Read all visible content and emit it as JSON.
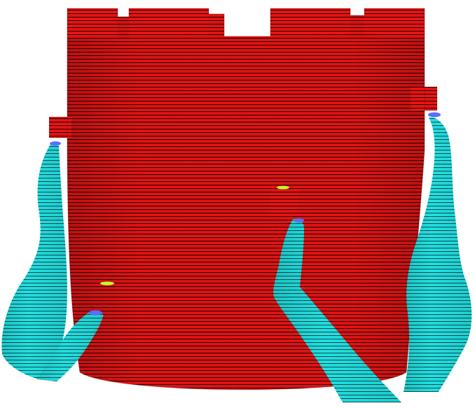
{
  "scene": {
    "background_color": "#ffffff",
    "tower_color": "#e41414",
    "layer_line_color": "#2a0000",
    "support_color": "#22e3e3",
    "support_line_color": "#0b4f56",
    "contact_marker_color": "#5b6cff",
    "gap_marker_color": "#b9ff2a"
  }
}
